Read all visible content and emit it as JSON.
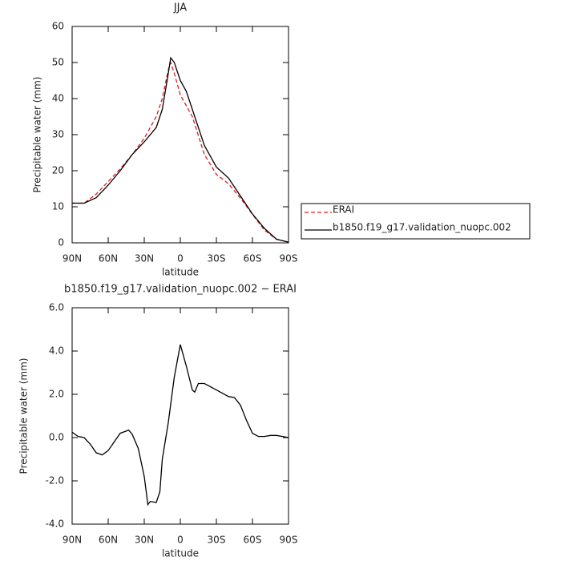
{
  "chart_data": [
    {
      "type": "line",
      "title": "JJA",
      "xlabel": "latitude",
      "ylabel": "Precipitable water (mm)",
      "x": [
        90,
        80,
        70,
        60,
        50,
        40,
        30,
        20,
        15,
        10,
        8,
        5,
        0,
        -5,
        -10,
        -20,
        -30,
        -40,
        -50,
        -60,
        -70,
        -80,
        -90
      ],
      "series": [
        {
          "name": "ERAI",
          "color": "#e41a1c",
          "style": "dashed",
          "values": [
            11,
            11,
            13.5,
            17,
            20.5,
            24.5,
            29,
            35,
            40,
            48,
            50,
            47,
            41,
            38,
            35,
            24.5,
            19,
            16.4,
            12.4,
            7.9,
            3.5,
            1,
            0.2
          ]
        },
        {
          "name": "b1850.f19_g17.validation_nuopc.002",
          "color": "#000000",
          "style": "solid",
          "values": [
            11,
            11,
            12.5,
            16,
            20,
            24.5,
            28,
            32,
            37,
            47,
            51.3,
            50,
            45,
            42,
            37,
            27,
            21,
            18,
            13,
            8,
            4,
            1,
            0.2
          ]
        }
      ],
      "xlim": [
        90,
        -90
      ],
      "xticks": [
        {
          "value": 90,
          "label": "90N"
        },
        {
          "value": 60,
          "label": "60N"
        },
        {
          "value": 30,
          "label": "30N"
        },
        0,
        {
          "value": -30,
          "label": "30S"
        },
        {
          "value": -60,
          "label": "60S"
        },
        {
          "value": -90,
          "label": "90S"
        }
      ],
      "ylim": [
        0,
        60
      ],
      "yticks": [
        0,
        10,
        20,
        30,
        40,
        50,
        60
      ],
      "legend": "right"
    },
    {
      "type": "line",
      "title": "b1850.f19_g17.validation_nuopc.002 − ERAI",
      "xlabel": "latitude",
      "ylabel": "Precipitable water (mm)",
      "x": [
        90,
        85,
        80,
        75,
        70,
        65,
        60,
        55,
        50,
        45,
        43,
        40,
        35,
        30,
        27,
        25,
        20,
        17,
        15,
        10,
        5,
        0,
        -5,
        -10,
        -12,
        -15,
        -20,
        -30,
        -40,
        -45,
        -50,
        -55,
        -60,
        -65,
        -70,
        -75,
        -80,
        -90
      ],
      "series": [
        {
          "color": "#000000",
          "style": "solid",
          "values": [
            0.25,
            0.05,
            0.0,
            -0.3,
            -0.7,
            -0.8,
            -0.6,
            -0.2,
            0.2,
            0.3,
            0.35,
            0.15,
            -0.5,
            -1.8,
            -3.1,
            -2.95,
            -3.0,
            -2.5,
            -1.0,
            0.7,
            2.8,
            4.3,
            3.3,
            2.2,
            2.1,
            2.5,
            2.5,
            2.2,
            1.9,
            1.85,
            1.5,
            0.8,
            0.2,
            0.05,
            0.05,
            0.1,
            0.1,
            0.0
          ]
        }
      ],
      "xlim": [
        90,
        -90
      ],
      "xticks": [
        {
          "value": 90,
          "label": "90N"
        },
        {
          "value": 60,
          "label": "60N"
        },
        {
          "value": 30,
          "label": "30N"
        },
        0,
        {
          "value": -30,
          "label": "30S"
        },
        {
          "value": -60,
          "label": "60S"
        },
        {
          "value": -90,
          "label": "90S"
        }
      ],
      "ylim": [
        -4,
        6
      ],
      "yticks": [
        {
          "value": -4,
          "label": "-4.0"
        },
        {
          "value": -2,
          "label": "-2.0"
        },
        {
          "value": 0,
          "label": "0.0"
        },
        {
          "value": 2,
          "label": "2.0"
        },
        {
          "value": 4,
          "label": "4.0"
        },
        {
          "value": 6,
          "label": "6.0"
        }
      ]
    }
  ]
}
